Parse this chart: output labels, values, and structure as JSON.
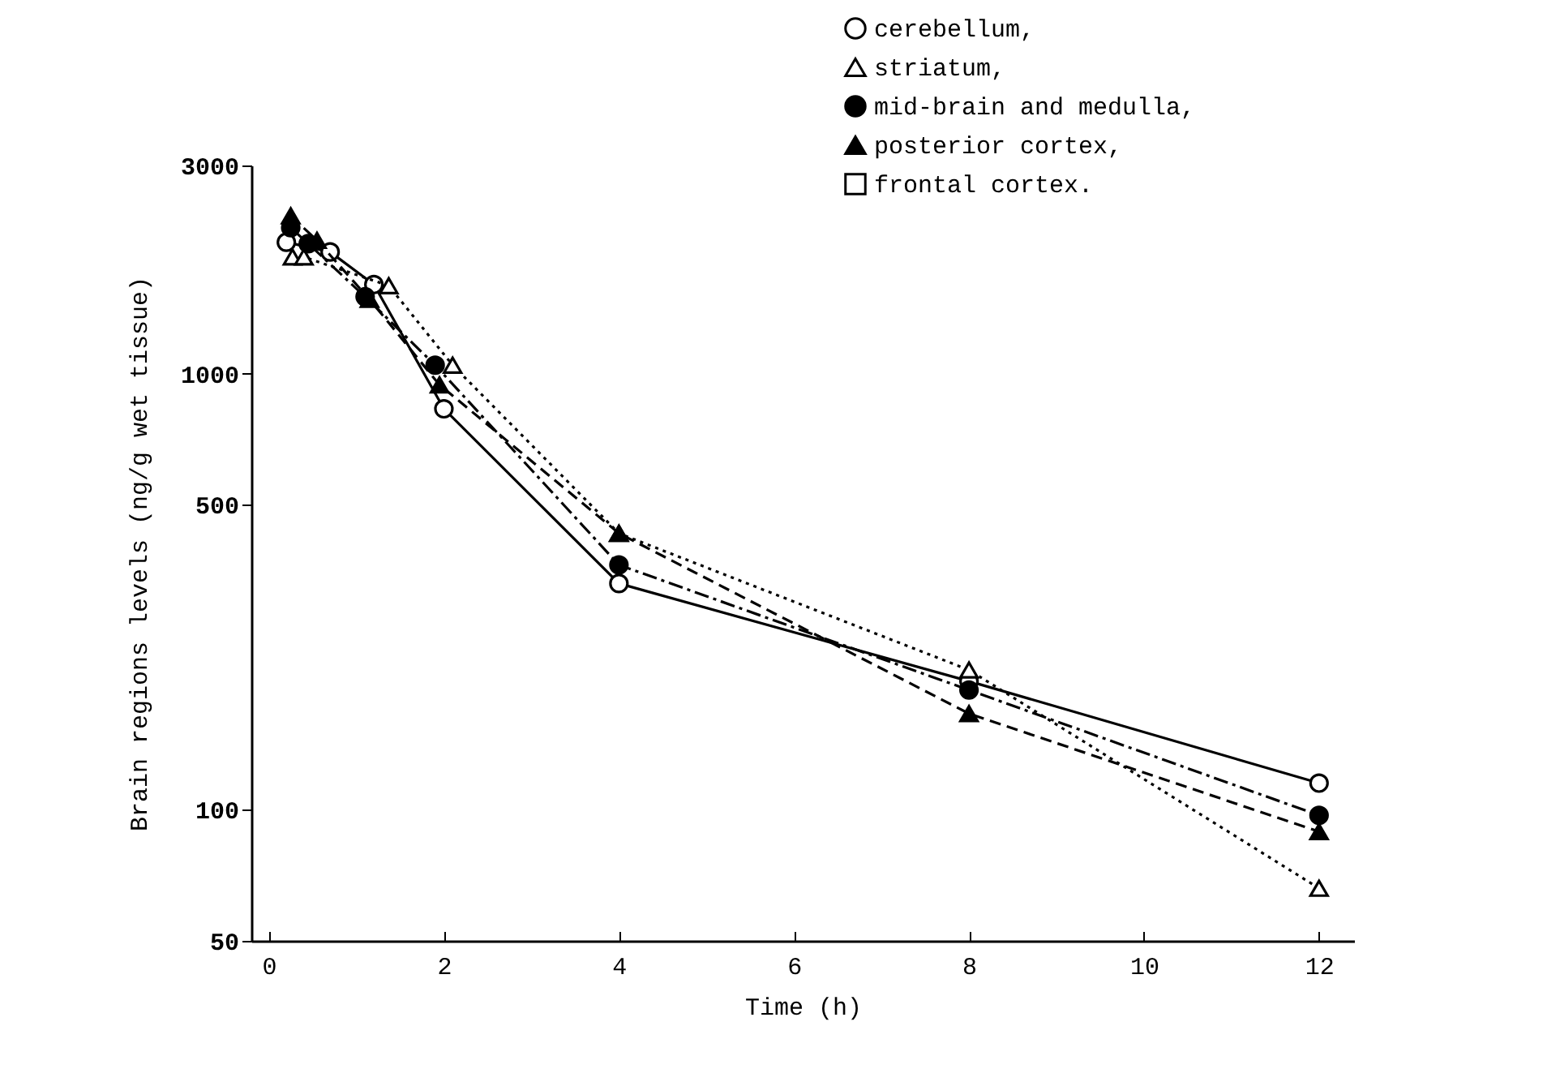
{
  "chart_data": {
    "type": "line",
    "xlabel": "Time (h)",
    "ylabel": "Brain regions levels (ng/g wet tissue)",
    "log": "y",
    "xlim": [
      -0.2,
      12.4
    ],
    "xticks": [
      0,
      2,
      4,
      6,
      8,
      10,
      12
    ],
    "ylim": [
      50,
      3000
    ],
    "yticks": [
      50,
      100,
      500,
      1000,
      3000
    ],
    "grid": false,
    "legend": "top right",
    "series": [
      {
        "name": "cerebellum,",
        "color": "#000000",
        "marker": "circle-open",
        "line_style": "solid",
        "x": [
          0.2,
          0.7,
          1.2,
          2,
          4,
          8,
          12
        ],
        "values": [
          2000,
          1900,
          1600,
          830,
          330,
          197,
          115
        ]
      },
      {
        "name": "striatum,",
        "color": "#000000",
        "marker": "triangle-open",
        "line_style": "dotted",
        "x": [
          0.27,
          0.4,
          1.37,
          2.1,
          4,
          8,
          12
        ],
        "values": [
          1850,
          1850,
          1590,
          1045,
          430,
          209,
          66
        ]
      },
      {
        "name": "mid-brain and medulla,",
        "color": "#000000",
        "marker": "circle",
        "line_style": "dashdot",
        "x": [
          0.25,
          0.45,
          1.1,
          1.9,
          4,
          8,
          12
        ],
        "values": [
          2160,
          1985,
          1500,
          1045,
          364,
          188,
          97
        ]
      },
      {
        "name": "posterior cortex,",
        "color": "#000000",
        "marker": "triangle",
        "line_style": "dashed",
        "x": [
          0.25,
          0.55,
          1.15,
          1.95,
          4,
          8,
          12
        ],
        "values": [
          2300,
          2020,
          1480,
          942,
          430,
          166,
          89
        ]
      },
      {
        "name": "frontal cortex.",
        "color": "#000000",
        "marker": "square-open",
        "line_style": "dashdot"
      }
    ]
  }
}
